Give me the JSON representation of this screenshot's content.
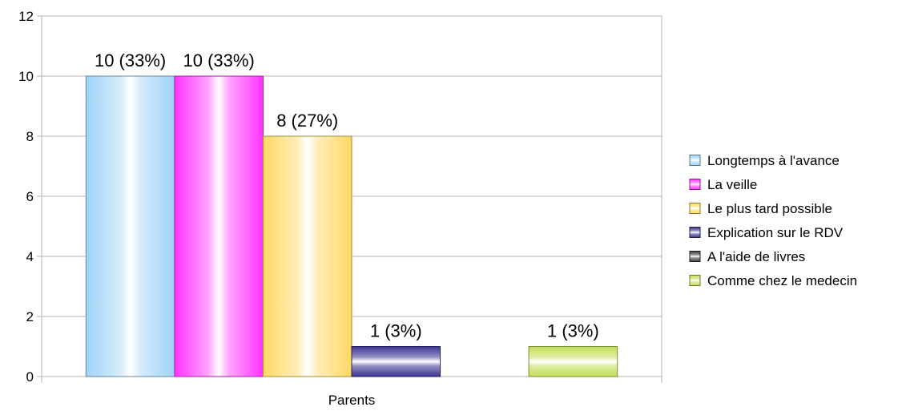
{
  "chart_data": {
    "type": "bar",
    "categories": [
      "Parents"
    ],
    "series": [
      {
        "name": "Longtemps à l'avance",
        "values": [
          10
        ],
        "label": "10 (33%)",
        "color": "#9fd3f7"
      },
      {
        "name": "La veille",
        "values": [
          10
        ],
        "label": "10 (33%)",
        "color": "#ff33ff"
      },
      {
        "name": "Le plus tard possible",
        "values": [
          8
        ],
        "label": "8 (27%)",
        "color": "#ffd860"
      },
      {
        "name": "Explication sur le RDV",
        "values": [
          1
        ],
        "label": "1 (3%)",
        "color": "#3b3492"
      },
      {
        "name": "A l'aide de livres",
        "values": [
          0
        ],
        "label": "",
        "color": "#3a3a3a"
      },
      {
        "name": "Comme chez le medecin",
        "values": [
          1
        ],
        "label": "1 (3%)",
        "color": "#c3dd57"
      }
    ],
    "ylim": [
      0,
      12
    ],
    "yticks": [
      0,
      2,
      4,
      6,
      8,
      10,
      12
    ],
    "grid": true,
    "legend_position": "right",
    "title": "",
    "xlabel": "",
    "ylabel": ""
  }
}
